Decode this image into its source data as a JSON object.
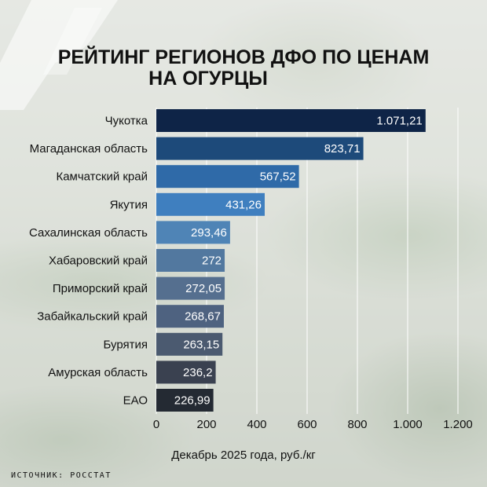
{
  "title_line1": "РЕЙТИНГ РЕГИОНОВ ДФО ПО ЦЕНАМ",
  "title_line2": "НА ОГУРЦЫ",
  "subtitle": "Декабрь 2025 года, руб./кг",
  "source": "ИСТОЧНИК: РОССТАТ",
  "chart_data": {
    "type": "bar",
    "orientation": "horizontal",
    "categories": [
      "Чукотка",
      "Магаданская область",
      "Камчатский край",
      "Якутия",
      "Сахалинская область",
      "Хабаровский край",
      "Приморский край",
      "Забайкальский край",
      "Бурятия",
      "Амурская область",
      "ЕАО"
    ],
    "values": [
      1071.21,
      823.71,
      567.52,
      431.26,
      293.46,
      272,
      272.05,
      268.67,
      263.15,
      236.2,
      226.99
    ],
    "value_labels": [
      "1.071,21",
      "823,71",
      "567,52",
      "431,26",
      "293,46",
      "272",
      "272,05",
      "268,67",
      "263,15",
      "236,2",
      "226,99"
    ],
    "xlim": [
      0,
      1200
    ],
    "xticks": [
      0,
      200,
      400,
      600,
      800,
      1000,
      1200
    ],
    "xtick_labels": [
      "0",
      "200",
      "400",
      "600",
      "800",
      "1.000",
      "1.200"
    ],
    "xlabel": "Декабрь 2025 года, руб./кг",
    "grid": "vertical",
    "bar_colors": [
      "#0e2447",
      "#1d4a7a",
      "#2f6aa8",
      "#3f7fbf",
      "#4f84b6",
      "#52789f",
      "#556f8f",
      "#4e6280",
      "#4b5a70",
      "#3a4150",
      "#242a33"
    ]
  }
}
